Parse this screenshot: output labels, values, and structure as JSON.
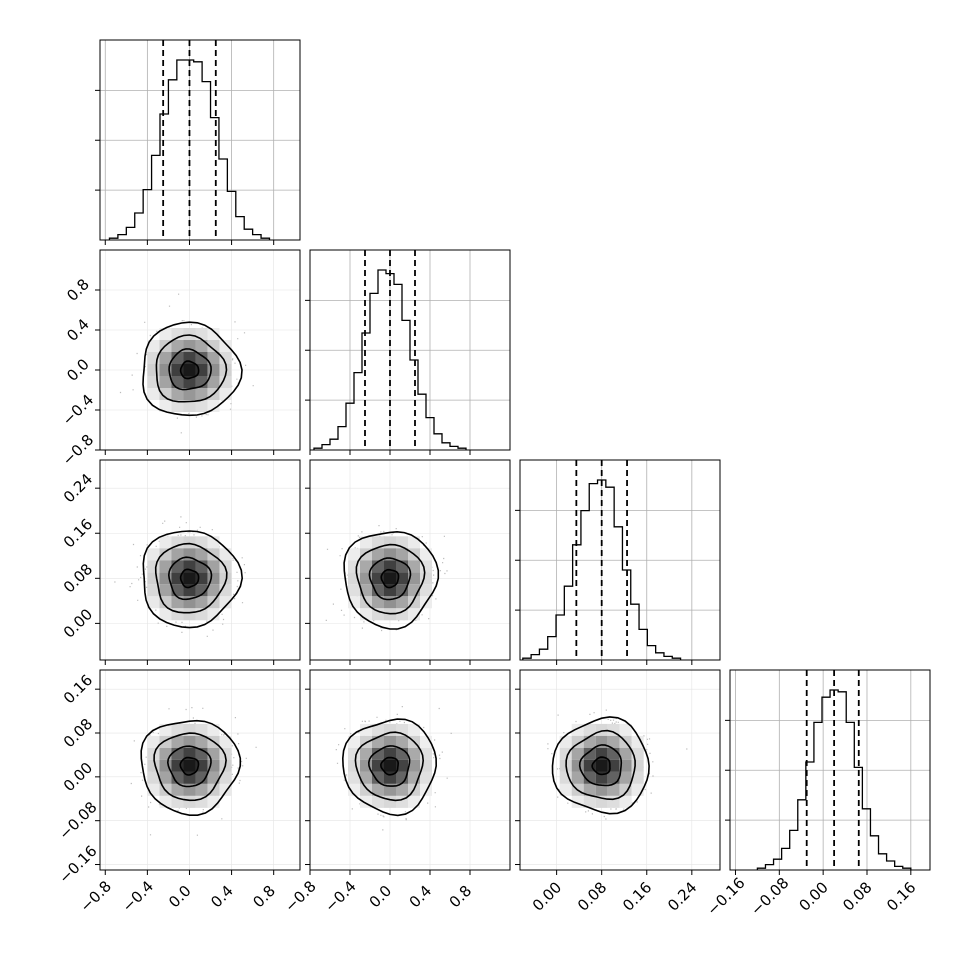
{
  "chart_data": {
    "type": "corner",
    "parameters": 4,
    "colors": {
      "hist": "#000000",
      "grid": "#b0b0b0",
      "contour": "#000000",
      "scatter": "#bbbbbb"
    },
    "params": [
      {
        "mean": 0.0,
        "std": 0.19,
        "range": [
          -0.85,
          1.05
        ],
        "ticks": [
          "−0.8",
          "−0.4",
          "0.0",
          "0.4",
          "0.8"
        ],
        "tick_values": [
          -0.8,
          -0.4,
          0.0,
          0.4,
          0.8
        ],
        "quantiles": [
          -0.25,
          0.0,
          0.25
        ]
      },
      {
        "mean": 0.0,
        "std": 0.19,
        "range": [
          -0.8,
          1.2
        ],
        "ticks": [
          "−0.8",
          "−0.4",
          "0.0",
          "0.4",
          "0.8"
        ],
        "tick_values": [
          -0.8,
          -0.4,
          0.0,
          0.4,
          0.8
        ],
        "quantiles": [
          -0.25,
          0.0,
          0.25
        ]
      },
      {
        "mean": 0.08,
        "std": 0.035,
        "range": [
          -0.065,
          0.29
        ],
        "ticks": [
          "0.00",
          "0.08",
          "0.16",
          "0.24"
        ],
        "tick_values": [
          0.0,
          0.08,
          0.16,
          0.24
        ],
        "quantiles": [
          0.035,
          0.08,
          0.125
        ]
      },
      {
        "mean": 0.02,
        "std": 0.035,
        "range": [
          -0.17,
          0.195
        ],
        "ticks": [
          "−0.16",
          "−0.08",
          "0.00",
          "0.08",
          "0.16"
        ],
        "tick_values": [
          -0.16,
          -0.08,
          0.0,
          0.08,
          0.16
        ],
        "quantiles": [
          -0.03,
          0.02,
          0.065
        ]
      }
    ],
    "histograms": [
      {
        "param": 0,
        "counts": [
          1,
          3,
          7,
          15,
          28,
          47,
          70,
          89,
          100,
          100,
          99,
          88,
          68,
          45,
          27,
          13,
          6,
          3,
          1
        ]
      },
      {
        "param": 1,
        "counts": [
          1,
          3,
          6,
          13,
          26,
          43,
          65,
          87,
          100,
          98,
          92,
          72,
          50,
          31,
          18,
          9,
          4,
          2,
          1
        ]
      },
      {
        "param": 2,
        "counts": [
          1,
          3,
          6,
          13,
          25,
          41,
          64,
          83,
          98,
          100,
          96,
          74,
          50,
          31,
          17,
          8,
          4,
          2,
          1
        ]
      },
      {
        "param": 3,
        "counts": [
          1,
          3,
          6,
          12,
          22,
          39,
          60,
          82,
          96,
          100,
          99,
          82,
          57,
          34,
          19,
          9,
          5,
          2,
          1
        ]
      }
    ]
  }
}
